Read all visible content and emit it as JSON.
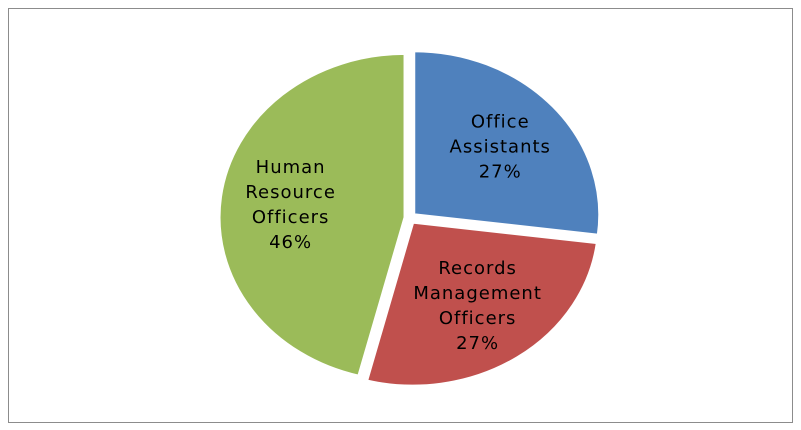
{
  "chart_data": {
    "type": "pie",
    "categories": [
      "Office Assistants",
      "Records Management Officers",
      "Human Resource Officers"
    ],
    "values": [
      27,
      27,
      46
    ],
    "value_labels": [
      "27%",
      "27%",
      "46%"
    ],
    "colors": [
      "#4f81bd",
      "#c0504d",
      "#9bbb59"
    ]
  }
}
